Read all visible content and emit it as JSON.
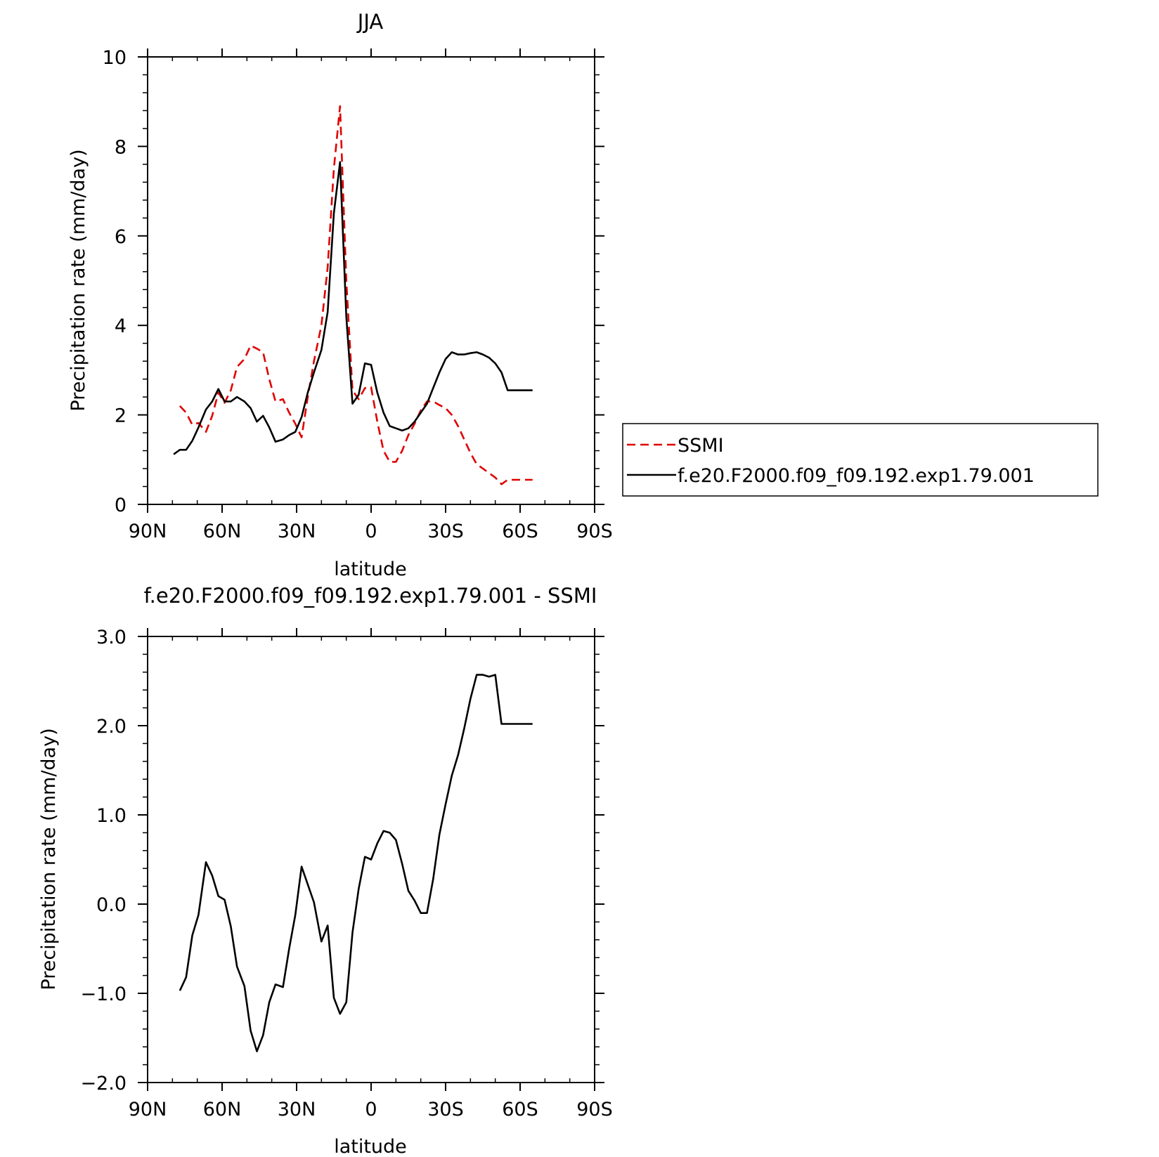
{
  "chart_data": [
    {
      "type": "line",
      "title": "JJA",
      "xlabel": "latitude",
      "ylabel": "Precipitation rate (mm/day)",
      "xlim": [
        90,
        -90
      ],
      "ylim": [
        0,
        10
      ],
      "x_ticks": [
        {
          "value": 90,
          "label": "90N"
        },
        {
          "value": 60,
          "label": "60N"
        },
        {
          "value": 30,
          "label": "30N"
        },
        {
          "value": 0,
          "label": "0"
        },
        {
          "value": -30,
          "label": "30S"
        },
        {
          "value": -60,
          "label": "60S"
        },
        {
          "value": -90,
          "label": "90S"
        }
      ],
      "y_ticks": [
        {
          "value": 0,
          "label": "0"
        },
        {
          "value": 2,
          "label": "2"
        },
        {
          "value": 4,
          "label": "4"
        },
        {
          "value": 6,
          "label": "6"
        },
        {
          "value": 8,
          "label": "8"
        },
        {
          "value": 10,
          "label": "10"
        }
      ],
      "legend": "outside-right",
      "series": [
        {
          "name": "SSMI",
          "color": "#e00000",
          "style": "dashed",
          "x": [
            77,
            74.5,
            72,
            69.5,
            66.5,
            64,
            61.5,
            59,
            56.5,
            54,
            51,
            48.5,
            46,
            43.5,
            41,
            38.5,
            35.5,
            33,
            30.5,
            28,
            25.5,
            23,
            20,
            17.5,
            15,
            12.5,
            10,
            7.5,
            5,
            2.5,
            0,
            -2.5,
            -5,
            -7.5,
            -10,
            -12.5,
            -15,
            -17.5,
            -20,
            -22.5,
            -25,
            -27.5,
            -30,
            -32.5,
            -35,
            -37.5,
            -40,
            -42.5,
            -45,
            -47.5,
            -50,
            -52.5,
            -55,
            -57.5,
            -60,
            -62.5,
            -65
          ],
          "y": [
            2.2,
            2.05,
            1.78,
            1.82,
            1.62,
            1.98,
            2.5,
            2.27,
            2.55,
            3.07,
            3.25,
            3.55,
            3.48,
            3.4,
            2.8,
            2.3,
            2.35,
            2.05,
            1.8,
            1.5,
            2.4,
            3.2,
            4.0,
            5.3,
            7.5,
            8.9,
            5.0,
            2.55,
            2.35,
            2.6,
            2.62,
            1.85,
            1.2,
            0.95,
            0.95,
            1.2,
            1.55,
            1.8,
            2.1,
            2.3,
            2.3,
            2.22,
            2.15,
            2.0,
            1.75,
            1.45,
            1.15,
            0.9,
            0.8,
            0.7,
            0.6,
            0.45,
            0.55,
            0.55,
            0.55,
            0.55,
            0.55
          ]
        },
        {
          "name": "f.e20.F2000.f09_f09.192.exp1.79.001",
          "color": "#000000",
          "style": "solid",
          "x": [
            79.5,
            77,
            74.5,
            72,
            69.5,
            66.5,
            64,
            61.5,
            59,
            56.5,
            54,
            51,
            48.5,
            46,
            43.5,
            41,
            38.5,
            35.5,
            33,
            30.5,
            28,
            25.5,
            23,
            20,
            17.5,
            15,
            12.5,
            10,
            7.5,
            5,
            2.5,
            0,
            -2.5,
            -5,
            -7.5,
            -10,
            -12.5,
            -15,
            -17.5,
            -20,
            -22.5,
            -25,
            -27.5,
            -30,
            -32.5,
            -35,
            -37.5,
            -40,
            -42.5,
            -45,
            -47.5,
            -50,
            -52.5,
            -55,
            -57.5,
            -60,
            -62.5,
            -65
          ],
          "y": [
            1.12,
            1.22,
            1.22,
            1.42,
            1.72,
            2.12,
            2.3,
            2.58,
            2.3,
            2.3,
            2.4,
            2.3,
            2.15,
            1.85,
            1.98,
            1.72,
            1.4,
            1.45,
            1.55,
            1.62,
            1.95,
            2.5,
            2.95,
            3.45,
            4.3,
            6.5,
            7.65,
            4.2,
            2.25,
            2.45,
            3.15,
            3.12,
            2.5,
            2.05,
            1.75,
            1.7,
            1.65,
            1.7,
            1.85,
            2.05,
            2.25,
            2.6,
            2.95,
            3.25,
            3.4,
            3.35,
            3.35,
            3.38,
            3.4,
            3.35,
            3.28,
            3.15,
            2.95,
            2.55,
            2.55,
            2.55,
            2.55,
            2.55
          ]
        }
      ]
    },
    {
      "type": "line",
      "title": "f.e20.F2000.f09_f09.192.exp1.79.001 - SSMI",
      "xlabel": "latitude",
      "ylabel": "Precipitation rate (mm/day)",
      "xlim": [
        90,
        -90
      ],
      "ylim": [
        -2.0,
        3.0
      ],
      "x_ticks": [
        {
          "value": 90,
          "label": "90N"
        },
        {
          "value": 60,
          "label": "60N"
        },
        {
          "value": 30,
          "label": "30N"
        },
        {
          "value": 0,
          "label": "0"
        },
        {
          "value": -30,
          "label": "30S"
        },
        {
          "value": -60,
          "label": "60S"
        },
        {
          "value": -90,
          "label": "90S"
        }
      ],
      "y_ticks": [
        {
          "value": -2.0,
          "label": "−2.0"
        },
        {
          "value": -1.0,
          "label": "−1.0"
        },
        {
          "value": 0.0,
          "label": "0.0"
        },
        {
          "value": 1.0,
          "label": "1.0"
        },
        {
          "value": 2.0,
          "label": "2.0"
        },
        {
          "value": 3.0,
          "label": "3.0"
        }
      ],
      "series": [
        {
          "color": "#000000",
          "style": "solid",
          "x": [
            77,
            74.5,
            72,
            69.5,
            66.5,
            64,
            61.5,
            59,
            56.5,
            54,
            51,
            48.5,
            46,
            43.5,
            41,
            38.5,
            35.5,
            33,
            30.5,
            28,
            25.5,
            23,
            20,
            17.5,
            15,
            12.5,
            10,
            7.5,
            5,
            2.5,
            0,
            -2.5,
            -5,
            -7.5,
            -10,
            -12.5,
            -15,
            -17.5,
            -20,
            -22.5,
            -25,
            -27.5,
            -30,
            -32.5,
            -35,
            -37.5,
            -40,
            -42.5,
            -45,
            -47.5,
            -50,
            -52.5,
            -55,
            -57.5,
            -60,
            -62.5,
            -65
          ],
          "y": [
            -0.97,
            -0.82,
            -0.35,
            -0.12,
            0.47,
            0.32,
            0.09,
            0.05,
            -0.25,
            -0.7,
            -0.92,
            -1.42,
            -1.65,
            -1.47,
            -1.1,
            -0.9,
            -0.93,
            -0.5,
            -0.12,
            0.42,
            0.22,
            0.02,
            -0.42,
            -0.24,
            -1.05,
            -1.23,
            -1.1,
            -0.32,
            0.17,
            0.53,
            0.5,
            0.68,
            0.82,
            0.8,
            0.72,
            0.45,
            0.15,
            0.04,
            -0.1,
            -0.1,
            0.28,
            0.78,
            1.12,
            1.44,
            1.67,
            1.97,
            2.3,
            2.57,
            2.57,
            2.55,
            2.57,
            2.02,
            2.02,
            2.02,
            2.02,
            2.02,
            2.02
          ]
        }
      ]
    }
  ]
}
